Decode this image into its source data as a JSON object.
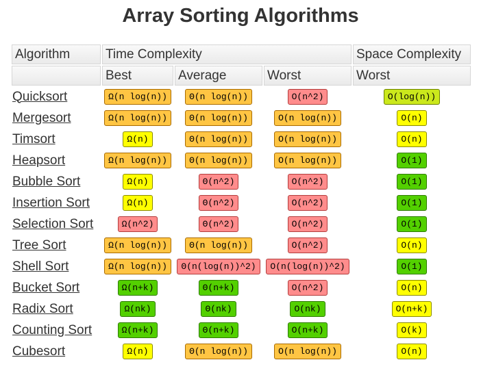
{
  "title": "Array Sorting Algorithms",
  "headers": {
    "algorithm": "Algorithm",
    "time_complexity": "Time Complexity",
    "space_complexity": "Space Complexity",
    "best": "Best",
    "average": "Average",
    "worst": "Worst",
    "space_worst": "Worst"
  },
  "colors": {
    "red": "#ff8c8c",
    "orange": "#ffc543",
    "yellow": "#ffff00",
    "lime": "#cbe81c",
    "green": "#53d000"
  },
  "rows": [
    {
      "name": "Quicksort",
      "best": {
        "text": "Ω(n log(n))",
        "color": "orange"
      },
      "average": {
        "text": "Θ(n log(n))",
        "color": "orange"
      },
      "worst": {
        "text": "O(n^2)",
        "color": "red"
      },
      "space": {
        "text": "O(log(n))",
        "color": "lime"
      }
    },
    {
      "name": "Mergesort",
      "best": {
        "text": "Ω(n log(n))",
        "color": "orange"
      },
      "average": {
        "text": "Θ(n log(n))",
        "color": "orange"
      },
      "worst": {
        "text": "O(n log(n))",
        "color": "orange"
      },
      "space": {
        "text": "O(n)",
        "color": "yellow"
      }
    },
    {
      "name": "Timsort",
      "best": {
        "text": "Ω(n)",
        "color": "yellow"
      },
      "average": {
        "text": "Θ(n log(n))",
        "color": "orange"
      },
      "worst": {
        "text": "O(n log(n))",
        "color": "orange"
      },
      "space": {
        "text": "O(n)",
        "color": "yellow"
      }
    },
    {
      "name": "Heapsort",
      "best": {
        "text": "Ω(n log(n))",
        "color": "orange"
      },
      "average": {
        "text": "Θ(n log(n))",
        "color": "orange"
      },
      "worst": {
        "text": "O(n log(n))",
        "color": "orange"
      },
      "space": {
        "text": "O(1)",
        "color": "green"
      }
    },
    {
      "name": "Bubble Sort",
      "best": {
        "text": "Ω(n)",
        "color": "yellow"
      },
      "average": {
        "text": "Θ(n^2)",
        "color": "red"
      },
      "worst": {
        "text": "O(n^2)",
        "color": "red"
      },
      "space": {
        "text": "O(1)",
        "color": "green"
      }
    },
    {
      "name": "Insertion Sort",
      "best": {
        "text": "Ω(n)",
        "color": "yellow"
      },
      "average": {
        "text": "Θ(n^2)",
        "color": "red"
      },
      "worst": {
        "text": "O(n^2)",
        "color": "red"
      },
      "space": {
        "text": "O(1)",
        "color": "green"
      }
    },
    {
      "name": "Selection Sort",
      "best": {
        "text": "Ω(n^2)",
        "color": "red"
      },
      "average": {
        "text": "Θ(n^2)",
        "color": "red"
      },
      "worst": {
        "text": "O(n^2)",
        "color": "red"
      },
      "space": {
        "text": "O(1)",
        "color": "green"
      }
    },
    {
      "name": "Tree Sort",
      "best": {
        "text": "Ω(n log(n))",
        "color": "orange"
      },
      "average": {
        "text": "Θ(n log(n))",
        "color": "orange"
      },
      "worst": {
        "text": "O(n^2)",
        "color": "red"
      },
      "space": {
        "text": "O(n)",
        "color": "yellow"
      }
    },
    {
      "name": "Shell Sort",
      "best": {
        "text": "Ω(n log(n))",
        "color": "orange"
      },
      "average": {
        "text": "Θ(n(log(n))^2)",
        "color": "red"
      },
      "worst": {
        "text": "O(n(log(n))^2)",
        "color": "red"
      },
      "space": {
        "text": "O(1)",
        "color": "green"
      }
    },
    {
      "name": "Bucket Sort",
      "best": {
        "text": "Ω(n+k)",
        "color": "green"
      },
      "average": {
        "text": "Θ(n+k)",
        "color": "green"
      },
      "worst": {
        "text": "O(n^2)",
        "color": "red"
      },
      "space": {
        "text": "O(n)",
        "color": "yellow"
      }
    },
    {
      "name": "Radix Sort",
      "best": {
        "text": "Ω(nk)",
        "color": "green"
      },
      "average": {
        "text": "Θ(nk)",
        "color": "green"
      },
      "worst": {
        "text": "O(nk)",
        "color": "green"
      },
      "space": {
        "text": "O(n+k)",
        "color": "yellow"
      }
    },
    {
      "name": "Counting Sort",
      "best": {
        "text": "Ω(n+k)",
        "color": "green"
      },
      "average": {
        "text": "Θ(n+k)",
        "color": "green"
      },
      "worst": {
        "text": "O(n+k)",
        "color": "green"
      },
      "space": {
        "text": "O(k)",
        "color": "yellow"
      }
    },
    {
      "name": "Cubesort",
      "best": {
        "text": "Ω(n)",
        "color": "yellow"
      },
      "average": {
        "text": "Θ(n log(n))",
        "color": "orange"
      },
      "worst": {
        "text": "O(n log(n))",
        "color": "orange"
      },
      "space": {
        "text": "O(n)",
        "color": "yellow"
      }
    }
  ]
}
